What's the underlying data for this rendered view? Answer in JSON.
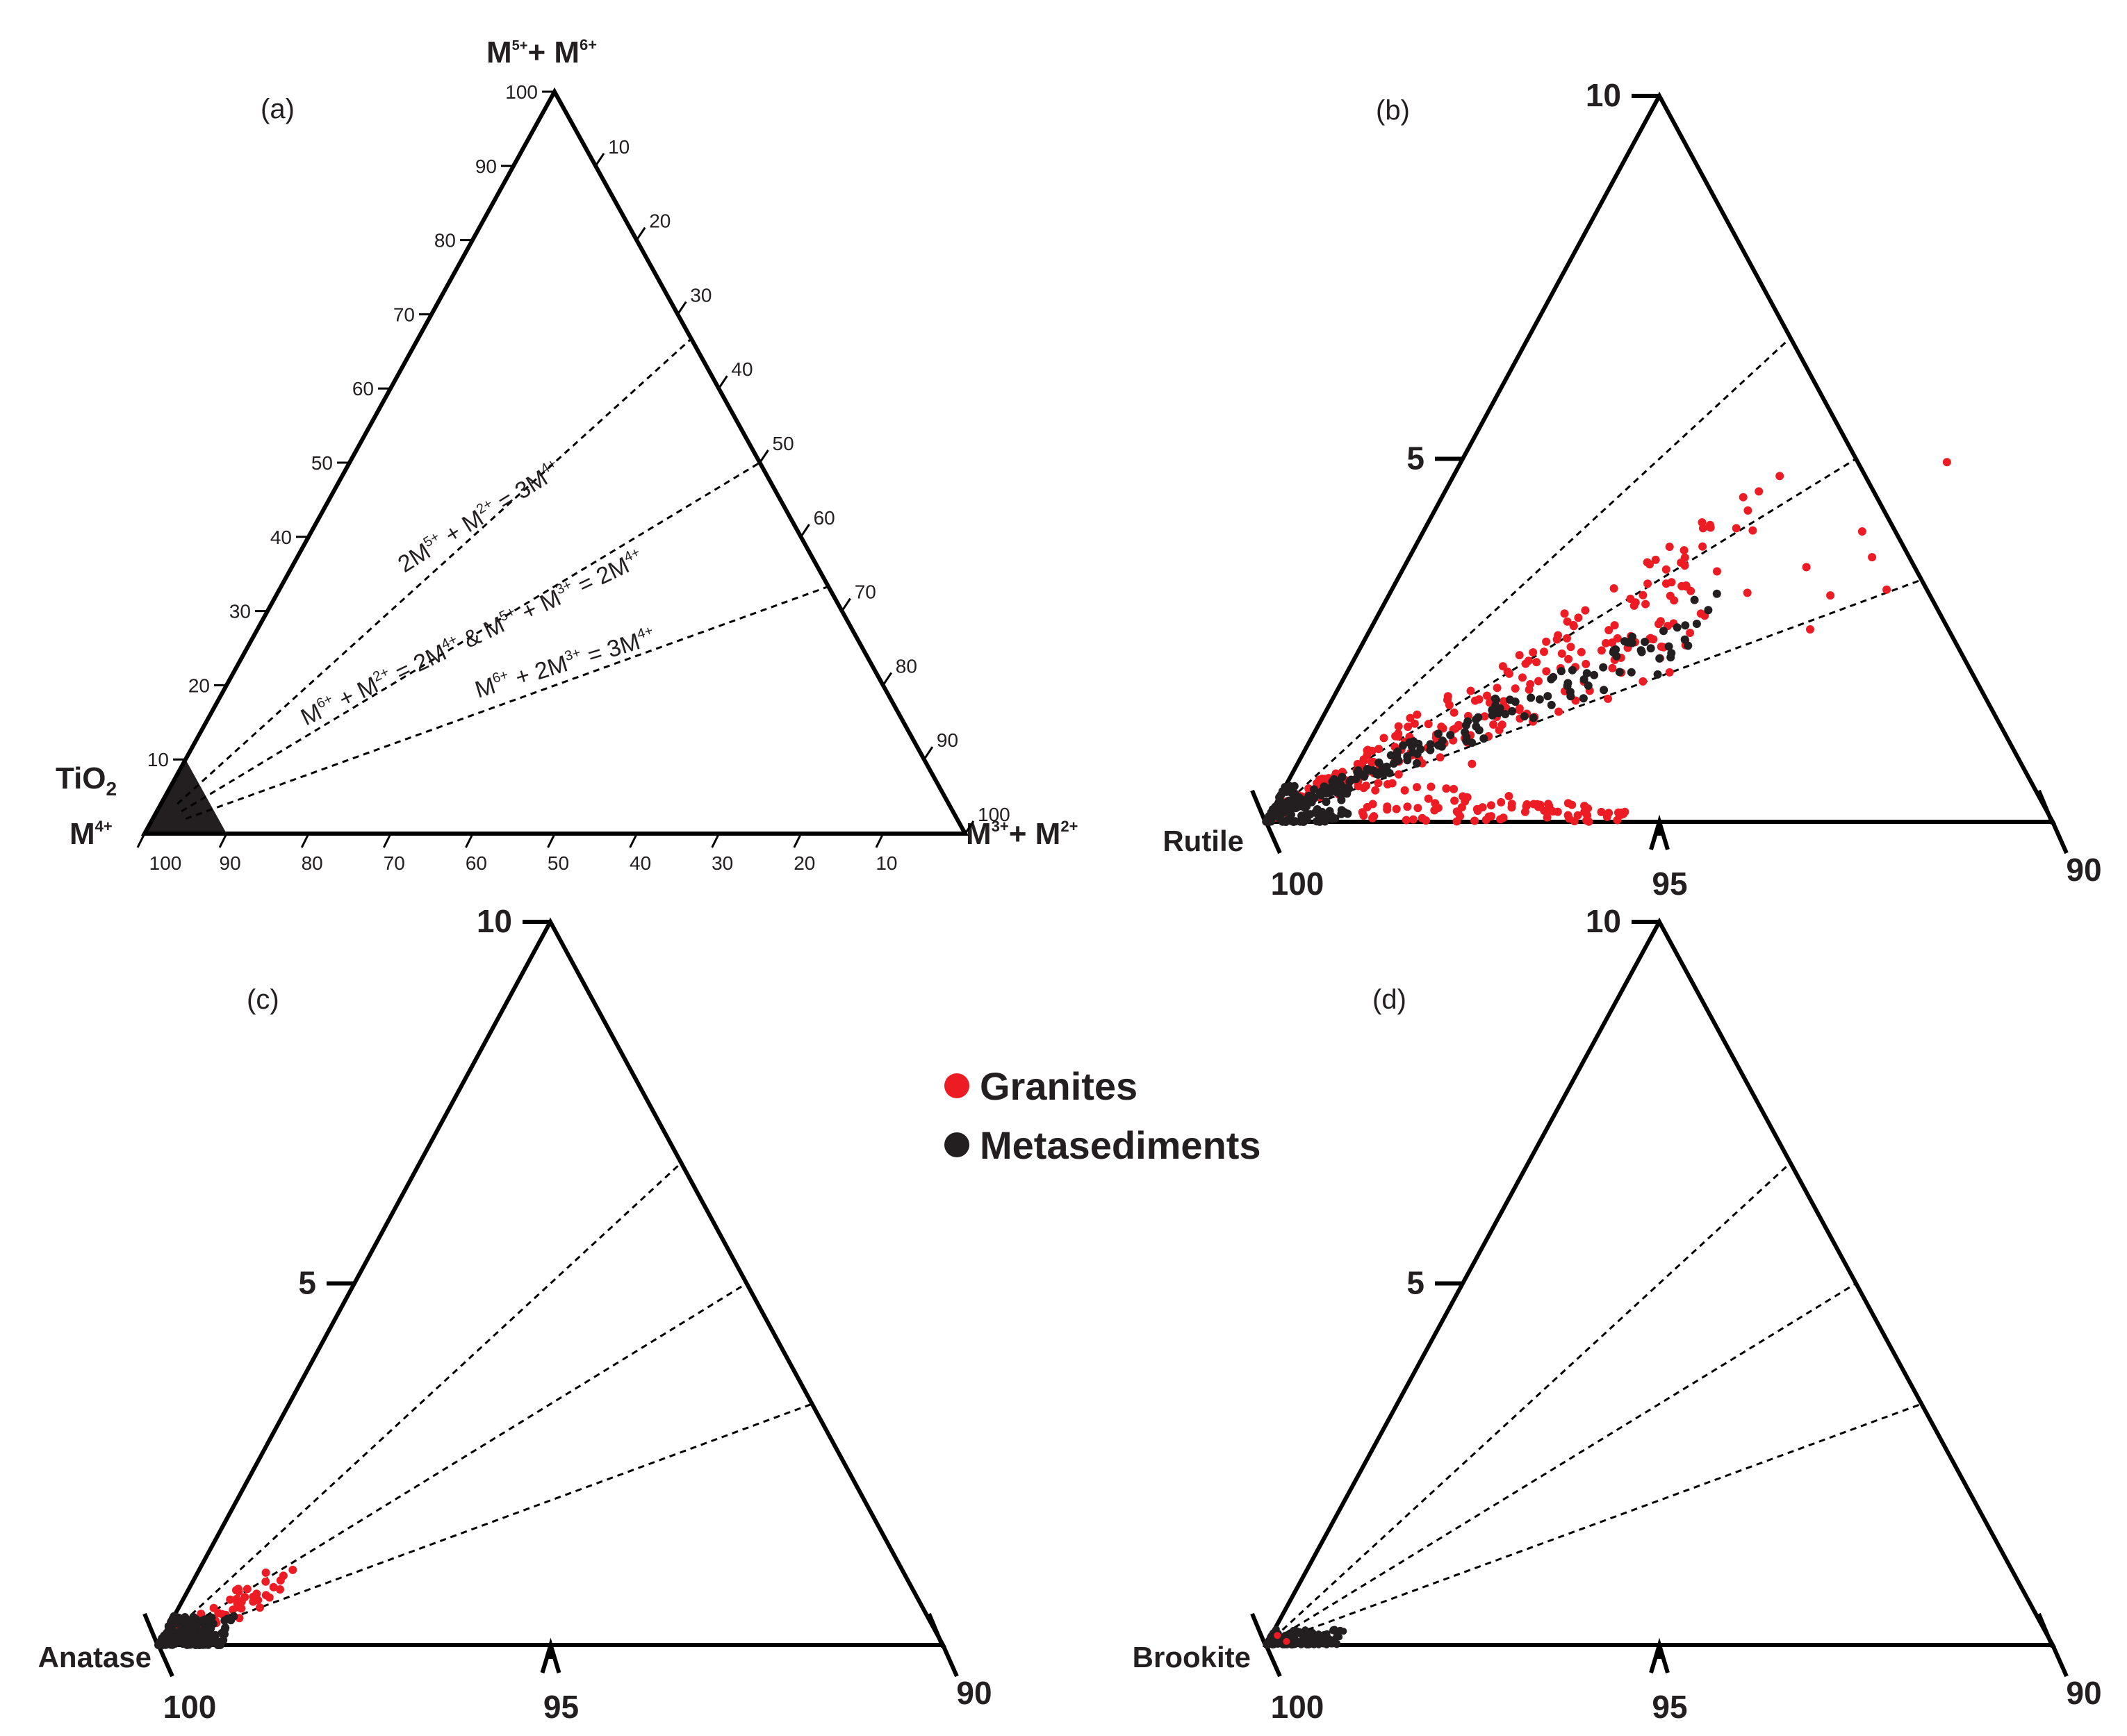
{
  "chart_data": [
    {
      "type": "scatter",
      "panel": "(a)",
      "subtype": "ternary",
      "corners": {
        "top": "M5++ M6+",
        "left_top": "TiO2",
        "left_bottom": "M4+",
        "right": "M3++ M2+"
      },
      "left_edge_ticks": [
        "100",
        "90",
        "80",
        "70",
        "60",
        "50",
        "40",
        "30",
        "20",
        "10"
      ],
      "right_edge_ticks": [
        "10",
        "20",
        "30",
        "40",
        "50",
        "60",
        "70",
        "80",
        "90",
        "100"
      ],
      "bottom_edge_ticks": [
        "100",
        "90",
        "80",
        "70",
        "60",
        "50",
        "40",
        "30",
        "20",
        "10"
      ],
      "substitution_lines": [
        {
          "label": "2M5+ + M2+ = 3M4+",
          "right_edge_value": 33.3
        },
        {
          "label": "M6+ + M2+ = 2M4+  &  M5+ + M3+ = 2M4+",
          "right_edge_value": 50
        },
        {
          "label": "M6+ + 2M3+ = 3M4+",
          "right_edge_value": 66.7
        }
      ],
      "highlight": "shaded region TiO2 > 90"
    },
    {
      "type": "scatter",
      "panel": "(b)",
      "mineral": "Rutile",
      "subtype": "ternary (zoom, TiO2 90-100)",
      "axis_labels": {
        "bottom_left": "100",
        "bottom_mid": "95",
        "bottom_right": "90",
        "left_mid": "5",
        "top": "10"
      }
    },
    {
      "type": "scatter",
      "panel": "(c)",
      "mineral": "Anatase",
      "subtype": "ternary (zoom, TiO2 90-100)",
      "axis_labels": {
        "bottom_left": "100",
        "bottom_mid": "95",
        "bottom_right": "90",
        "left_mid": "5",
        "top": "10"
      }
    },
    {
      "type": "scatter",
      "panel": "(d)",
      "mineral": "Brookite",
      "subtype": "ternary (zoom, TiO2 90-100)",
      "axis_labels": {
        "bottom_left": "100",
        "bottom_mid": "95",
        "bottom_right": "90",
        "left_mid": "5",
        "top": "10"
      }
    }
  ],
  "legend": {
    "items": [
      {
        "label": "Granites",
        "color": "#ed1c24"
      },
      {
        "label": "Metasediments",
        "color": "#231f20"
      }
    ]
  },
  "colors": {
    "granite": "#ed1c24",
    "metasediment": "#231f20",
    "axis": "#000000"
  }
}
